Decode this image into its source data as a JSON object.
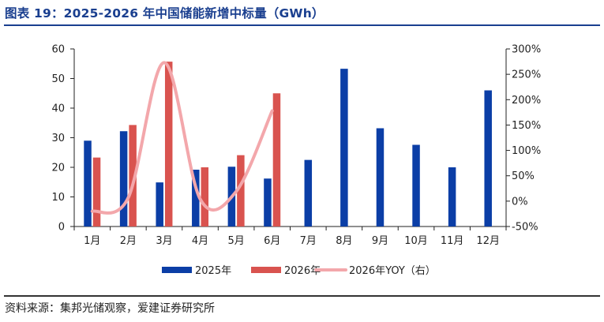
{
  "title": "图表 19：2025-2026 年中国储能新增中标量（GWh）",
  "source": "资料来源：集邦光储观察，爱建证券研究所",
  "colors": {
    "s2025": "#0b3ea6",
    "s2026": "#d9534f",
    "yoy": "#f3a7ab",
    "title": "#1a3f8f",
    "axis": "#222222"
  },
  "chart_data": {
    "type": "bar",
    "categories": [
      "1月",
      "2月",
      "3月",
      "4月",
      "5月",
      "6月",
      "7月",
      "8月",
      "9月",
      "10月",
      "11月",
      "12月"
    ],
    "series": [
      {
        "name": "2025年",
        "type": "bar",
        "axis": "left",
        "values": [
          29.0,
          32.2,
          14.9,
          19.2,
          20.2,
          16.2,
          22.5,
          53.3,
          33.2,
          27.6,
          20.0,
          46.0
        ]
      },
      {
        "name": "2026年",
        "type": "bar",
        "axis": "left",
        "values": [
          23.3,
          34.3,
          55.7,
          20.0,
          24.1,
          45.0,
          null,
          null,
          null,
          null,
          null,
          null
        ]
      },
      {
        "name": "2026年YOY（右）",
        "type": "line",
        "axis": "right",
        "values": [
          -20,
          6.5,
          273,
          4,
          19,
          178,
          null,
          null,
          null,
          null,
          null,
          null
        ]
      }
    ],
    "y_left": {
      "min": 0,
      "max": 60,
      "ticks": [
        0,
        10,
        20,
        30,
        40,
        50,
        60
      ]
    },
    "y_right": {
      "min": -50,
      "max": 300,
      "ticks": [
        -50,
        0,
        50,
        100,
        150,
        200,
        250,
        300
      ],
      "tick_labels": [
        "-50%",
        "0%",
        "50%",
        "100%",
        "150%",
        "200%",
        "250%",
        "300%"
      ]
    },
    "legend_position": "bottom",
    "grid": false
  }
}
